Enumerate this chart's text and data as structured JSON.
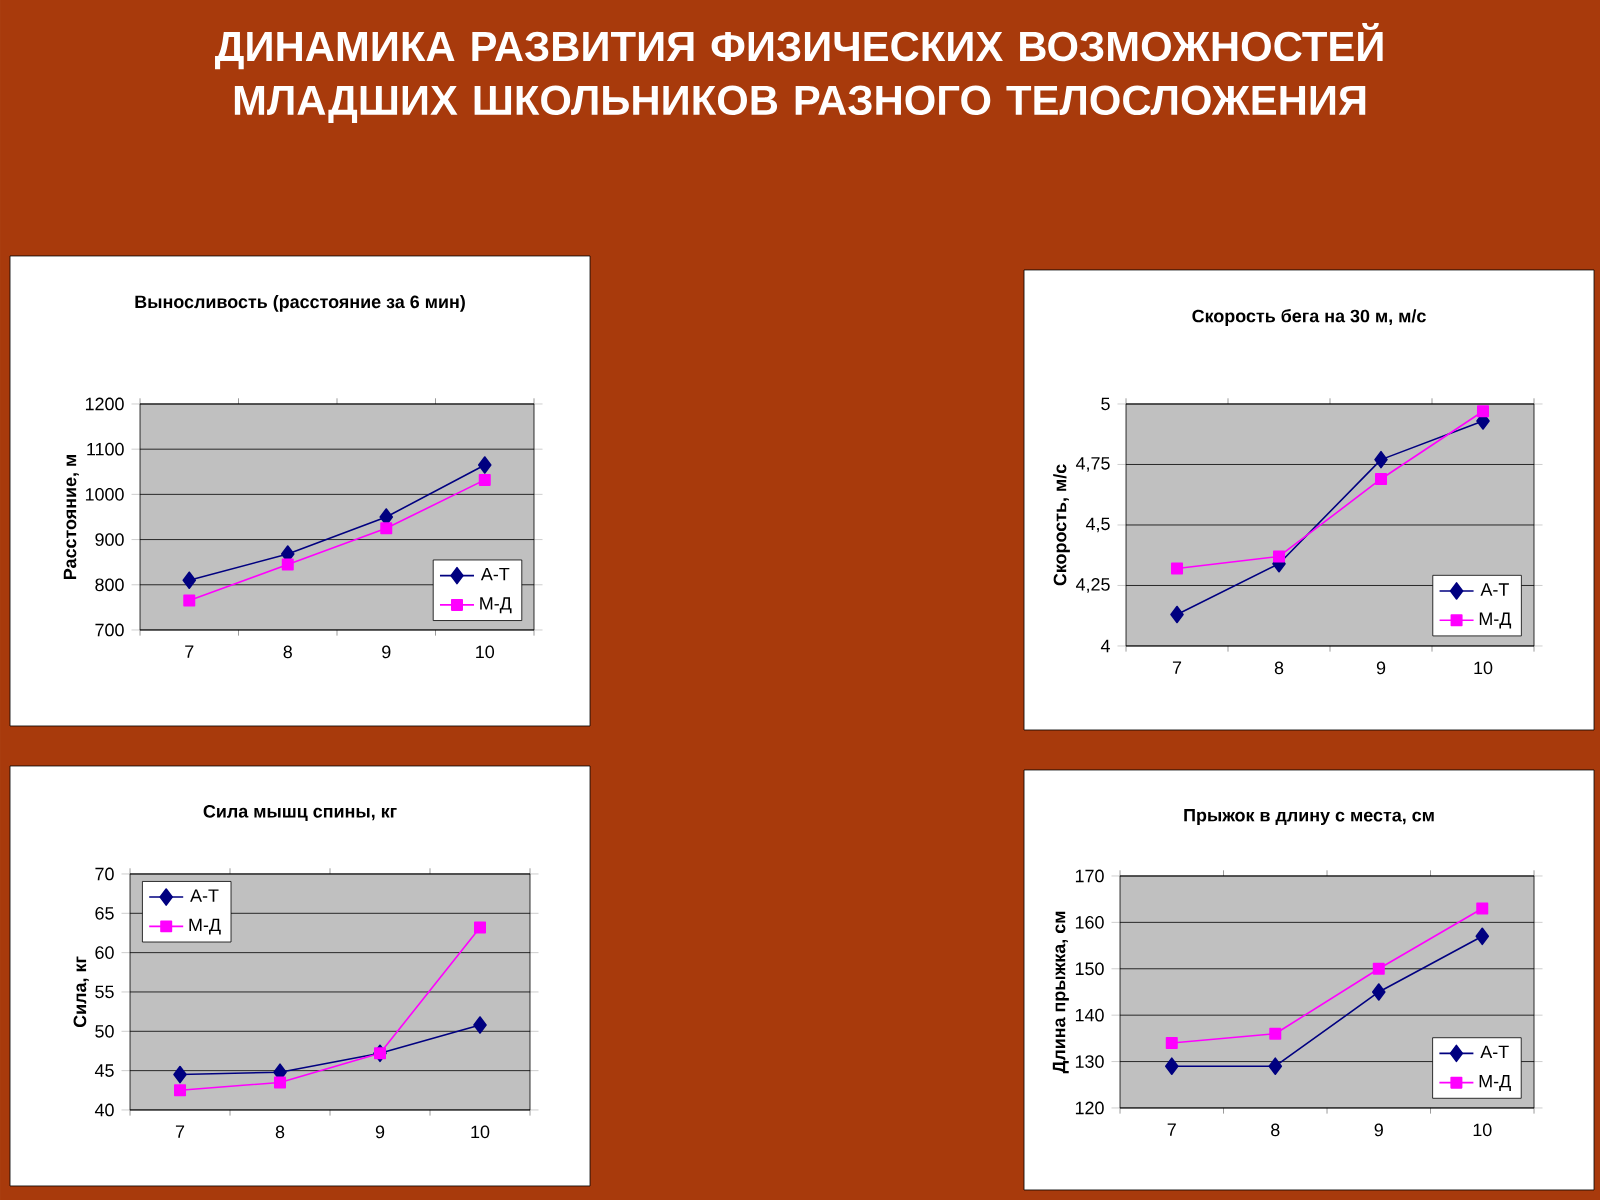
{
  "chart_data": [
    {
      "type": "line",
      "title": "Выносливость (расстояние за 6 мин)",
      "ylabel": "Расстояние, м",
      "annotations": [
        "ДИНАМИКА РАЗВИТИЯ ФИЗИЧЕСКИХ ВОЗМОЖНОСТЕЙ МЛАДШИХ ШКОЛЬНИКОВ РАЗНОГО ТЕЛОСЛОЖЕНИЯ"
      ],
      "categories": [
        "7",
        "8",
        "9",
        "10"
      ],
      "ylim": [
        700,
        1200
      ],
      "yticks": [
        700,
        800,
        900,
        1000,
        1100,
        1200
      ],
      "grid": "y",
      "legend": "bottom right",
      "series": [
        {
          "name": "А-Т",
          "color": "#000080",
          "marker": "diamond",
          "values": [
            810,
            868,
            950,
            1065
          ]
        },
        {
          "name": "М-Д",
          "color": "#ff00ff",
          "marker": "square",
          "values": [
            765,
            845,
            925,
            1032
          ]
        }
      ]
    },
    {
      "type": "line",
      "title": "Скорость бега на 30 м, м/с",
      "ylabel": "Скорость, м/с",
      "categories": [
        "7",
        "8",
        "9",
        "10"
      ],
      "ylim": [
        4,
        5
      ],
      "yticks": [
        4,
        {
          "value": 4.25,
          "label": "4,25"
        },
        {
          "value": 4.5,
          "label": "4,5"
        },
        {
          "value": 4.75,
          "label": "4,75"
        },
        5
      ],
      "grid": "y",
      "legend": "bottom right",
      "series": [
        {
          "name": "А-Т",
          "color": "#000080",
          "marker": "diamond",
          "values": [
            4.13,
            4.34,
            4.77,
            4.93
          ]
        },
        {
          "name": "М-Д",
          "color": "#ff00ff",
          "marker": "square",
          "values": [
            4.32,
            4.37,
            4.69,
            4.97
          ]
        }
      ]
    },
    {
      "type": "line",
      "title": "Сила мышц спины, кг",
      "ylabel": "Сила, кг",
      "categories": [
        "7",
        "8",
        "9",
        "10"
      ],
      "ylim": [
        40,
        70
      ],
      "yticks": [
        40,
        45,
        50,
        55,
        60,
        65,
        70
      ],
      "grid": "y",
      "legend": "top left",
      "series": [
        {
          "name": "А-Т",
          "color": "#000080",
          "marker": "diamond",
          "values": [
            44.5,
            44.8,
            47.2,
            50.8
          ]
        },
        {
          "name": "М-Д",
          "color": "#ff00ff",
          "marker": "square",
          "values": [
            42.5,
            43.5,
            47.2,
            63.2
          ]
        }
      ]
    },
    {
      "type": "line",
      "title": "Прыжок в длину с места, см",
      "ylabel": "Длина прыжка, см",
      "categories": [
        "7",
        "8",
        "9",
        "10"
      ],
      "ylim": [
        120,
        170
      ],
      "yticks": [
        120,
        130,
        140,
        150,
        160,
        170
      ],
      "grid": "y",
      "legend": "bottom right",
      "series": [
        {
          "name": "А-Т",
          "color": "#000080",
          "marker": "diamond",
          "values": [
            129,
            129,
            145,
            157
          ]
        },
        {
          "name": "М-Д",
          "color": "#ff00ff",
          "marker": "square",
          "values": [
            134,
            136,
            150,
            163
          ]
        }
      ]
    }
  ]
}
